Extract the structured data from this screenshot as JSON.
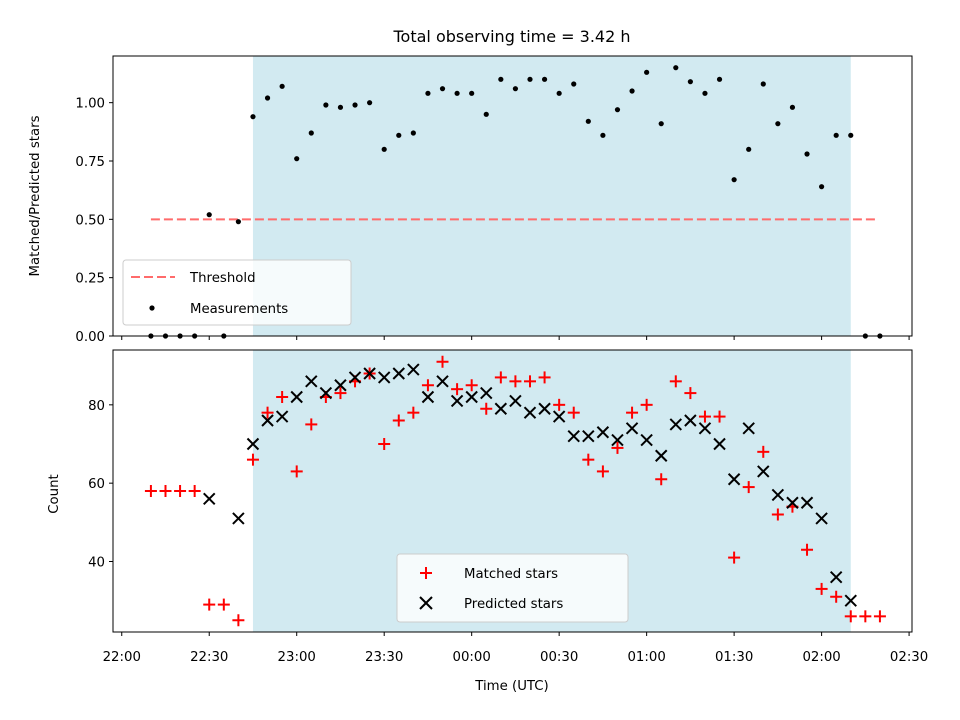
{
  "chart_data": [
    {
      "type": "scatter",
      "title": "Total observing time = 3.42 h",
      "xlabel": "",
      "ylabel": "Matched/Predicted stars",
      "ylim": [
        0.0,
        1.2
      ],
      "yticks": [
        "0.00",
        "0.25",
        "0.50",
        "0.75",
        "1.00"
      ],
      "xlim": [
        "21:57",
        "02:31"
      ],
      "shaded_range": [
        "22:45",
        "02:10"
      ],
      "shaded_color": "#add8e6",
      "threshold": {
        "name": "Threshold",
        "value": 0.5,
        "x_range": [
          "22:10",
          "02:19"
        ],
        "color": "#ff6b6b"
      },
      "legend": [
        "Threshold",
        "Measurements"
      ],
      "legend_position": "lower-left",
      "series": [
        {
          "name": "Measurements",
          "color": "#000000",
          "points": [
            [
              "22:10",
              0.0
            ],
            [
              "22:15",
              0.0
            ],
            [
              "22:20",
              0.0
            ],
            [
              "22:25",
              0.0
            ],
            [
              "22:30",
              0.52
            ],
            [
              "22:35",
              0.0
            ],
            [
              "22:40",
              0.49
            ],
            [
              "22:45",
              0.94
            ],
            [
              "22:50",
              1.02
            ],
            [
              "22:55",
              1.07
            ],
            [
              "23:00",
              0.76
            ],
            [
              "23:05",
              0.87
            ],
            [
              "23:10",
              0.99
            ],
            [
              "23:15",
              0.98
            ],
            [
              "23:20",
              0.99
            ],
            [
              "23:25",
              1.0
            ],
            [
              "23:30",
              0.8
            ],
            [
              "23:35",
              0.86
            ],
            [
              "23:40",
              0.87
            ],
            [
              "23:45",
              1.04
            ],
            [
              "23:50",
              1.06
            ],
            [
              "23:55",
              1.04
            ],
            [
              "00:00",
              1.04
            ],
            [
              "00:05",
              0.95
            ],
            [
              "00:10",
              1.1
            ],
            [
              "00:15",
              1.06
            ],
            [
              "00:20",
              1.1
            ],
            [
              "00:25",
              1.1
            ],
            [
              "00:30",
              1.04
            ],
            [
              "00:35",
              1.08
            ],
            [
              "00:40",
              0.92
            ],
            [
              "00:45",
              0.86
            ],
            [
              "00:50",
              0.97
            ],
            [
              "00:55",
              1.05
            ],
            [
              "01:00",
              1.13
            ],
            [
              "01:05",
              0.91
            ],
            [
              "01:10",
              1.15
            ],
            [
              "01:15",
              1.09
            ],
            [
              "01:20",
              1.04
            ],
            [
              "01:25",
              1.1
            ],
            [
              "01:30",
              0.67
            ],
            [
              "01:35",
              0.8
            ],
            [
              "01:40",
              1.08
            ],
            [
              "01:45",
              0.91
            ],
            [
              "01:50",
              0.98
            ],
            [
              "01:55",
              0.78
            ],
            [
              "02:00",
              0.64
            ],
            [
              "02:05",
              0.86
            ],
            [
              "02:10",
              0.86
            ],
            [
              "02:15",
              0.0
            ],
            [
              "02:20",
              0.0
            ]
          ]
        }
      ]
    },
    {
      "type": "scatter",
      "title": "",
      "xlabel": "Time (UTC)",
      "ylabel": "Count",
      "ylim": [
        22,
        94
      ],
      "yticks": [
        "40",
        "60",
        "80"
      ],
      "xlim": [
        "21:57",
        "02:31"
      ],
      "xticks": [
        "22:00",
        "22:30",
        "23:00",
        "23:30",
        "00:00",
        "00:30",
        "01:00",
        "01:30",
        "02:00",
        "02:30"
      ],
      "shaded_range": [
        "22:45",
        "02:10"
      ],
      "shaded_color": "#add8e6",
      "legend": [
        "Matched stars",
        "Predicted stars"
      ],
      "legend_position": "lower-center",
      "series": [
        {
          "name": "Matched stars",
          "marker": "+",
          "color": "#ff0000",
          "points": [
            [
              "22:10",
              58
            ],
            [
              "22:15",
              58
            ],
            [
              "22:20",
              58
            ],
            [
              "22:25",
              58
            ],
            [
              "22:30",
              29
            ],
            [
              "22:35",
              29
            ],
            [
              "22:40",
              25
            ],
            [
              "22:45",
              66
            ],
            [
              "22:50",
              78
            ],
            [
              "22:55",
              82
            ],
            [
              "23:00",
              63
            ],
            [
              "23:05",
              75
            ],
            [
              "23:10",
              82
            ],
            [
              "23:15",
              83
            ],
            [
              "23:20",
              86
            ],
            [
              "23:25",
              88
            ],
            [
              "23:30",
              70
            ],
            [
              "23:35",
              76
            ],
            [
              "23:40",
              78
            ],
            [
              "23:45",
              85
            ],
            [
              "23:50",
              91
            ],
            [
              "23:55",
              84
            ],
            [
              "00:00",
              85
            ],
            [
              "00:05",
              79
            ],
            [
              "00:10",
              87
            ],
            [
              "00:15",
              86
            ],
            [
              "00:20",
              86
            ],
            [
              "00:25",
              87
            ],
            [
              "00:30",
              80
            ],
            [
              "00:35",
              78
            ],
            [
              "00:40",
              66
            ],
            [
              "00:45",
              63
            ],
            [
              "00:50",
              69
            ],
            [
              "00:55",
              78
            ],
            [
              "01:00",
              80
            ],
            [
              "01:05",
              61
            ],
            [
              "01:10",
              86
            ],
            [
              "01:15",
              83
            ],
            [
              "01:20",
              77
            ],
            [
              "01:25",
              77
            ],
            [
              "01:30",
              41
            ],
            [
              "01:35",
              59
            ],
            [
              "01:40",
              68
            ],
            [
              "01:45",
              52
            ],
            [
              "01:50",
              54
            ],
            [
              "01:55",
              43
            ],
            [
              "02:00",
              33
            ],
            [
              "02:05",
              31
            ],
            [
              "02:10",
              26
            ],
            [
              "02:15",
              26
            ],
            [
              "02:20",
              26
            ]
          ]
        },
        {
          "name": "Predicted stars",
          "marker": "x",
          "color": "#000000",
          "points": [
            [
              "22:30",
              56
            ],
            [
              "22:40",
              51
            ],
            [
              "22:45",
              70
            ],
            [
              "22:50",
              76
            ],
            [
              "22:55",
              77
            ],
            [
              "23:00",
              82
            ],
            [
              "23:05",
              86
            ],
            [
              "23:10",
              83
            ],
            [
              "23:15",
              85
            ],
            [
              "23:20",
              87
            ],
            [
              "23:25",
              88
            ],
            [
              "23:30",
              87
            ],
            [
              "23:35",
              88
            ],
            [
              "23:40",
              89
            ],
            [
              "23:45",
              82
            ],
            [
              "23:50",
              86
            ],
            [
              "23:55",
              81
            ],
            [
              "00:00",
              82
            ],
            [
              "00:05",
              83
            ],
            [
              "00:10",
              79
            ],
            [
              "00:15",
              81
            ],
            [
              "00:20",
              78
            ],
            [
              "00:25",
              79
            ],
            [
              "00:30",
              77
            ],
            [
              "00:35",
              72
            ],
            [
              "00:40",
              72
            ],
            [
              "00:45",
              73
            ],
            [
              "00:50",
              71
            ],
            [
              "00:55",
              74
            ],
            [
              "01:00",
              71
            ],
            [
              "01:05",
              67
            ],
            [
              "01:10",
              75
            ],
            [
              "01:15",
              76
            ],
            [
              "01:20",
              74
            ],
            [
              "01:25",
              70
            ],
            [
              "01:30",
              61
            ],
            [
              "01:35",
              74
            ],
            [
              "01:40",
              63
            ],
            [
              "01:45",
              57
            ],
            [
              "01:50",
              55
            ],
            [
              "01:55",
              55
            ],
            [
              "02:00",
              51
            ],
            [
              "02:05",
              36
            ],
            [
              "02:10",
              30
            ]
          ]
        }
      ]
    }
  ]
}
